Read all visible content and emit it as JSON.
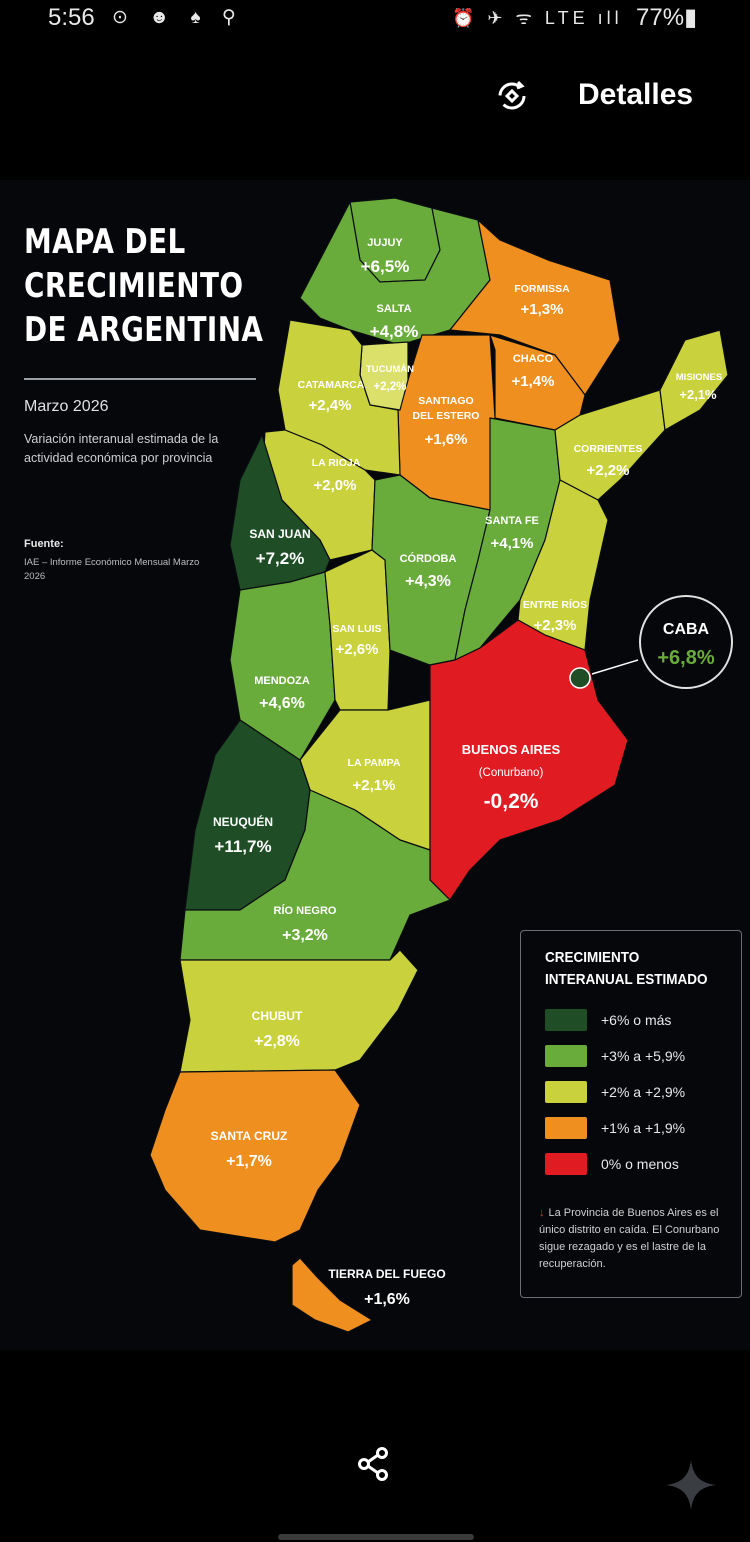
{
  "status_bar": {
    "time": "5:56",
    "left_icons": "⊙ ☻ ♠ ⚲",
    "right_icons": "⏰ ✈ ᯤ LTE ıll",
    "battery": "77%▮"
  },
  "top_bar": {
    "details_label": "Detalles"
  },
  "poster": {
    "title_lines": [
      "MAPA DEL",
      "CRECIMIENTO",
      "DE ARGENTINA"
    ],
    "date": "Marzo 2026",
    "description": "Variación interanual estimada de la actividad económica por provincia",
    "source_label": "Fuente:",
    "source_text": "IAE – Informe Económico Mensual Marzo 2026"
  },
  "colors": {
    "dark_green": "#1e4d26",
    "green": "#6aac3b",
    "yellow": "#c9d13d",
    "orange": "#ef8f1f",
    "red": "#e01b22"
  },
  "provinces": [
    {
      "name": "JUJUY",
      "value": "+6,5%"
    },
    {
      "name": "SALTA",
      "value": "+4,8%"
    },
    {
      "name": "FORMISSA",
      "value": "+1,3%"
    },
    {
      "name": "MISIONES",
      "value": "+2,1%"
    },
    {
      "name": "CHACO",
      "value": "+1,4%"
    },
    {
      "name": "TUCUMÁN",
      "value": "+2,2%"
    },
    {
      "name": "CATAMARCA",
      "value": "+2,4%"
    },
    {
      "name": "SANTIAGO",
      "name2": "DEL ESTERO",
      "value": "+1,6%"
    },
    {
      "name": "CORRIENTES",
      "value": "+2,2%"
    },
    {
      "name": "LA RIOJA",
      "value": "+2,0%"
    },
    {
      "name": "SANTA FE",
      "value": "+4,1%"
    },
    {
      "name": "SAN JUAN",
      "value": "+7,2%"
    },
    {
      "name": "CÓRDOBA",
      "value": "+4,3%"
    },
    {
      "name": "ENTRE RÍOS",
      "value": "+2,3%"
    },
    {
      "name": "SAN LUIS",
      "value": "+2,6%"
    },
    {
      "name": "MENDOZA",
      "value": "+4,6%"
    },
    {
      "name": "BUENOS AIRES",
      "sub": "(Conurbano)",
      "value": "-0,2%"
    },
    {
      "name": "LA PAMPA",
      "value": "+2,1%"
    },
    {
      "name": "NEUQUÉN",
      "value": "+11,7%"
    },
    {
      "name": "RÍO NEGRO",
      "value": "+3,2%"
    },
    {
      "name": "CHUBUT",
      "value": "+2,8%"
    },
    {
      "name": "SANTA CRUZ",
      "value": "+1,7%"
    },
    {
      "name": "TIERRA DEL FUEGO",
      "value": "+1,6%"
    },
    {
      "name": "CABA",
      "value": "+6,8%"
    }
  ],
  "legend": {
    "title_lines": [
      "CRECIMIENTO",
      "INTERANUAL ESTIMADO"
    ],
    "items": [
      {
        "label": "+6% o más",
        "color": "#1e4d26"
      },
      {
        "label": "+3% a +5,9%",
        "color": "#6aac3b"
      },
      {
        "label": "+2% a +2,9%",
        "color": "#c9d13d"
      },
      {
        "label": "+1% a +1,9%",
        "color": "#ef8f1f"
      },
      {
        "label": "0% o menos",
        "color": "#e01b22"
      }
    ],
    "note": "La Provincia de Buenos Aires es el único distrito en caída. El Conurbano sigue rezagado y es el lastre de la recuperación."
  }
}
